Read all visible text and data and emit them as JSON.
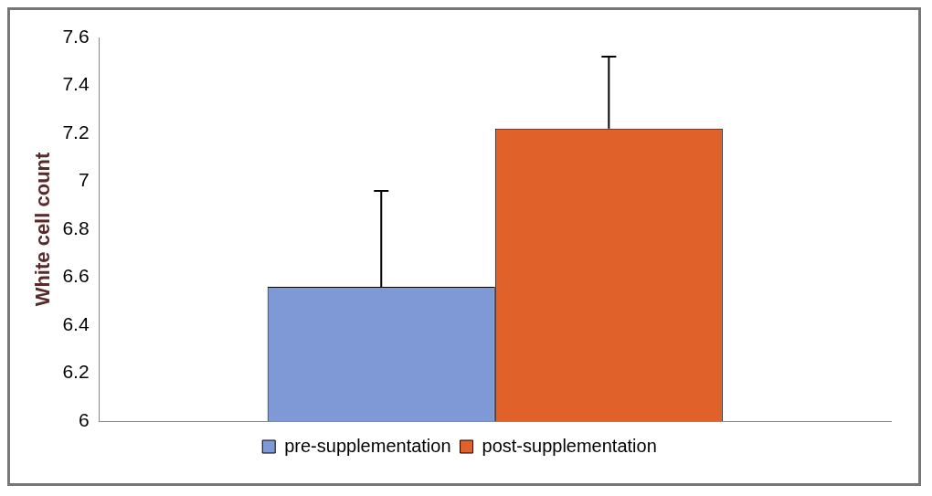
{
  "chart_data": {
    "type": "bar",
    "ylabel": "White cell count",
    "categories": [
      null
    ],
    "series": [
      {
        "name": "pre-supplementation",
        "color": "#7f98d6",
        "values": [
          6.56
        ],
        "errors": [
          [
            6.56,
            6.96
          ]
        ]
      },
      {
        "name": "post-supplementation",
        "color": "#e0622a",
        "values": [
          7.22
        ],
        "errors": [
          [
            7.22,
            7.52
          ]
        ]
      }
    ],
    "ylim": [
      6,
      7.6
    ],
    "yticks": [
      6,
      6.2,
      6.4,
      6.6,
      6.8,
      7,
      7.2,
      7.4,
      7.6
    ],
    "grid": false,
    "legend": "bottom"
  }
}
